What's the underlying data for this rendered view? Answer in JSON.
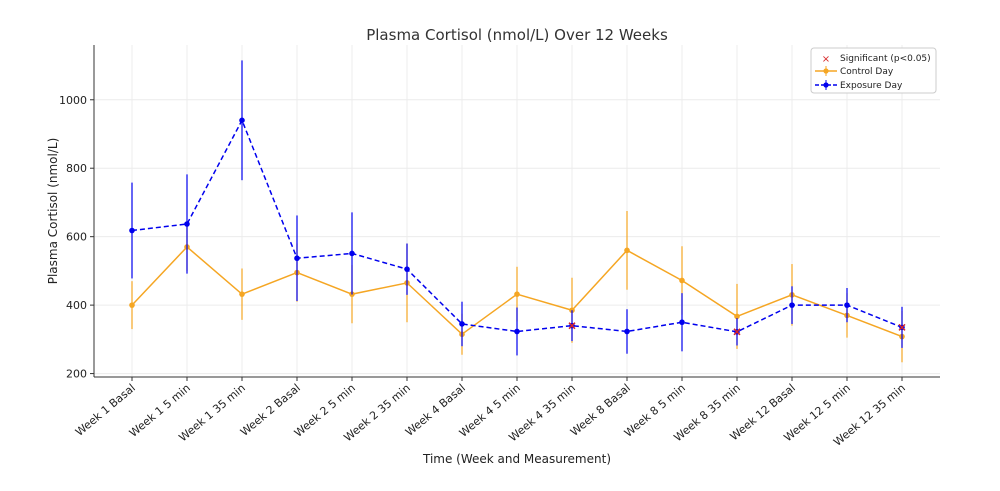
{
  "chart_data": {
    "type": "line",
    "title": "Plasma Cortisol (nmol/L) Over 12 Weeks",
    "xlabel": "Time (Week and Measurement)",
    "ylabel": "Plasma Cortisol (nmol/L)",
    "categories": [
      "Week 1 Basal",
      "Week 1 5 min",
      "Week 1 35 min",
      "Week 2 Basal",
      "Week 2 5 min",
      "Week 2 35 min",
      "Week 4 Basal",
      "Week 4 5 min",
      "Week 4 35 min",
      "Week 8 Basal",
      "Week 8 5 min",
      "Week 8 35 min",
      "Week 12 Basal",
      "Week 12 5 min",
      "Week 12 35 min"
    ],
    "ylim": [
      190,
      1160
    ],
    "yticks": [
      200,
      400,
      600,
      800,
      1000
    ],
    "grid": true,
    "legend_position": "top-right",
    "series": [
      {
        "name": "Control Day",
        "color": "#f5a623",
        "style": "solid",
        "values": [
          400,
          570,
          432,
          495,
          432,
          465,
          315,
          432,
          385,
          560,
          472,
          367,
          430,
          370,
          308
        ],
        "error": [
          70,
          70,
          75,
          85,
          85,
          115,
          60,
          80,
          95,
          115,
          100,
          95,
          90,
          65,
          75
        ]
      },
      {
        "name": "Exposure Day",
        "color": "#0000ee",
        "style": "dashed",
        "values": [
          618,
          637,
          940,
          537,
          551,
          505,
          345,
          323,
          340,
          323,
          350,
          322,
          400,
          400,
          335
        ],
        "error": [
          140,
          145,
          175,
          125,
          120,
          75,
          65,
          70,
          45,
          65,
          85,
          40,
          55,
          50,
          60
        ]
      }
    ],
    "significant": {
      "name": "Significant (p<0.05)",
      "color": "#d62728",
      "indices": [
        8,
        11,
        14
      ]
    }
  }
}
